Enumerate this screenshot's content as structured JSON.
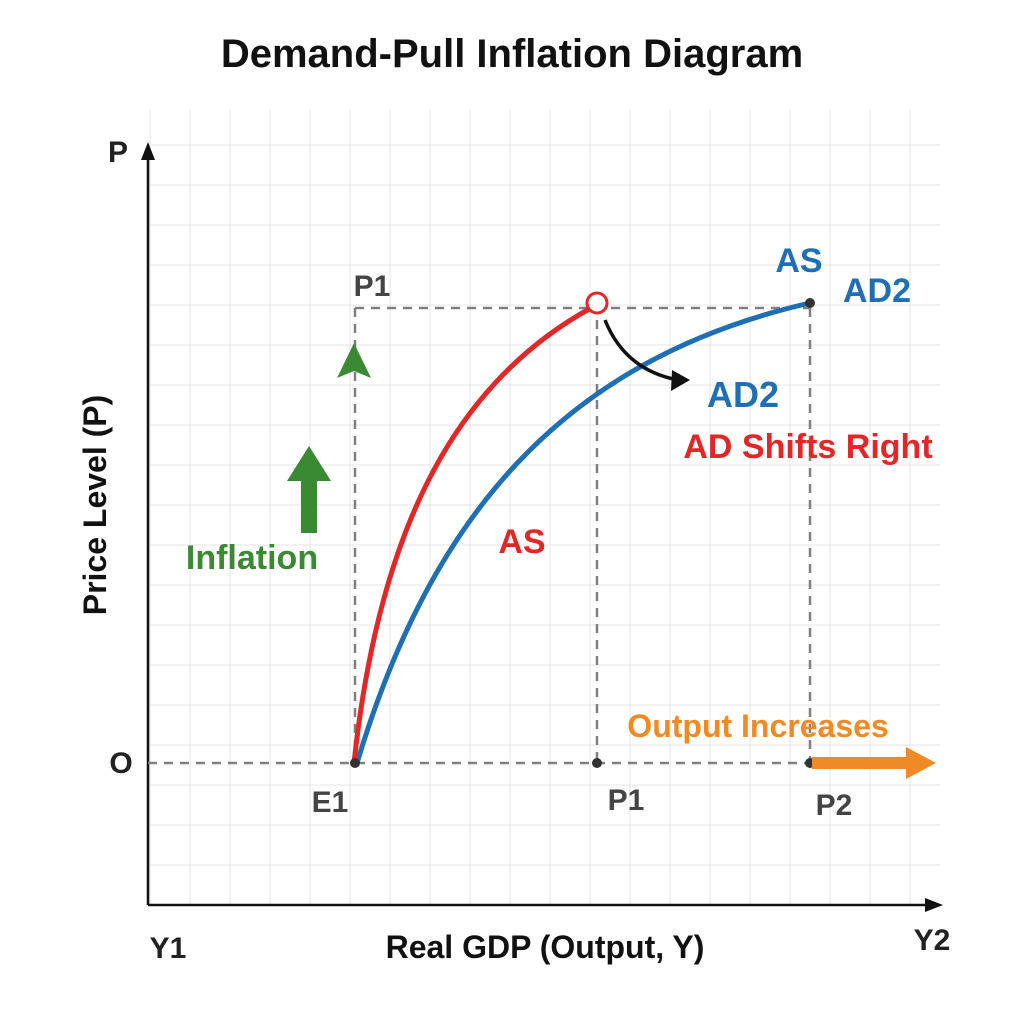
{
  "title": "Demand-Pull Inflation Diagram",
  "axes": {
    "y_axis_symbol": "P",
    "y_axis_label": "Price Level (P)",
    "x_axis_label": "Real GDP (Output, Y)",
    "origin_label": "O",
    "x_start_label": "Y1",
    "x_end_label": "Y2"
  },
  "points": {
    "p1_top": "P1",
    "e1": "E1",
    "p1_bottom": "P1",
    "p2": "P2"
  },
  "curve_labels": {
    "as_top": "AS",
    "ad2_top": "AD2",
    "ad2_mid": "AD2",
    "as_red": "AS"
  },
  "annotations": {
    "inflation": "Inflation",
    "ad_shifts": "AD Shifts Right",
    "output_increases": "Output Increases"
  },
  "colors": {
    "red_curve": "#e32626",
    "blue_curve": "#1f6fb5",
    "inflation_green": "#3a8a34",
    "output_orange": "#f08a24",
    "text_dark": "#222222",
    "dashed_gray": "#808080"
  }
}
